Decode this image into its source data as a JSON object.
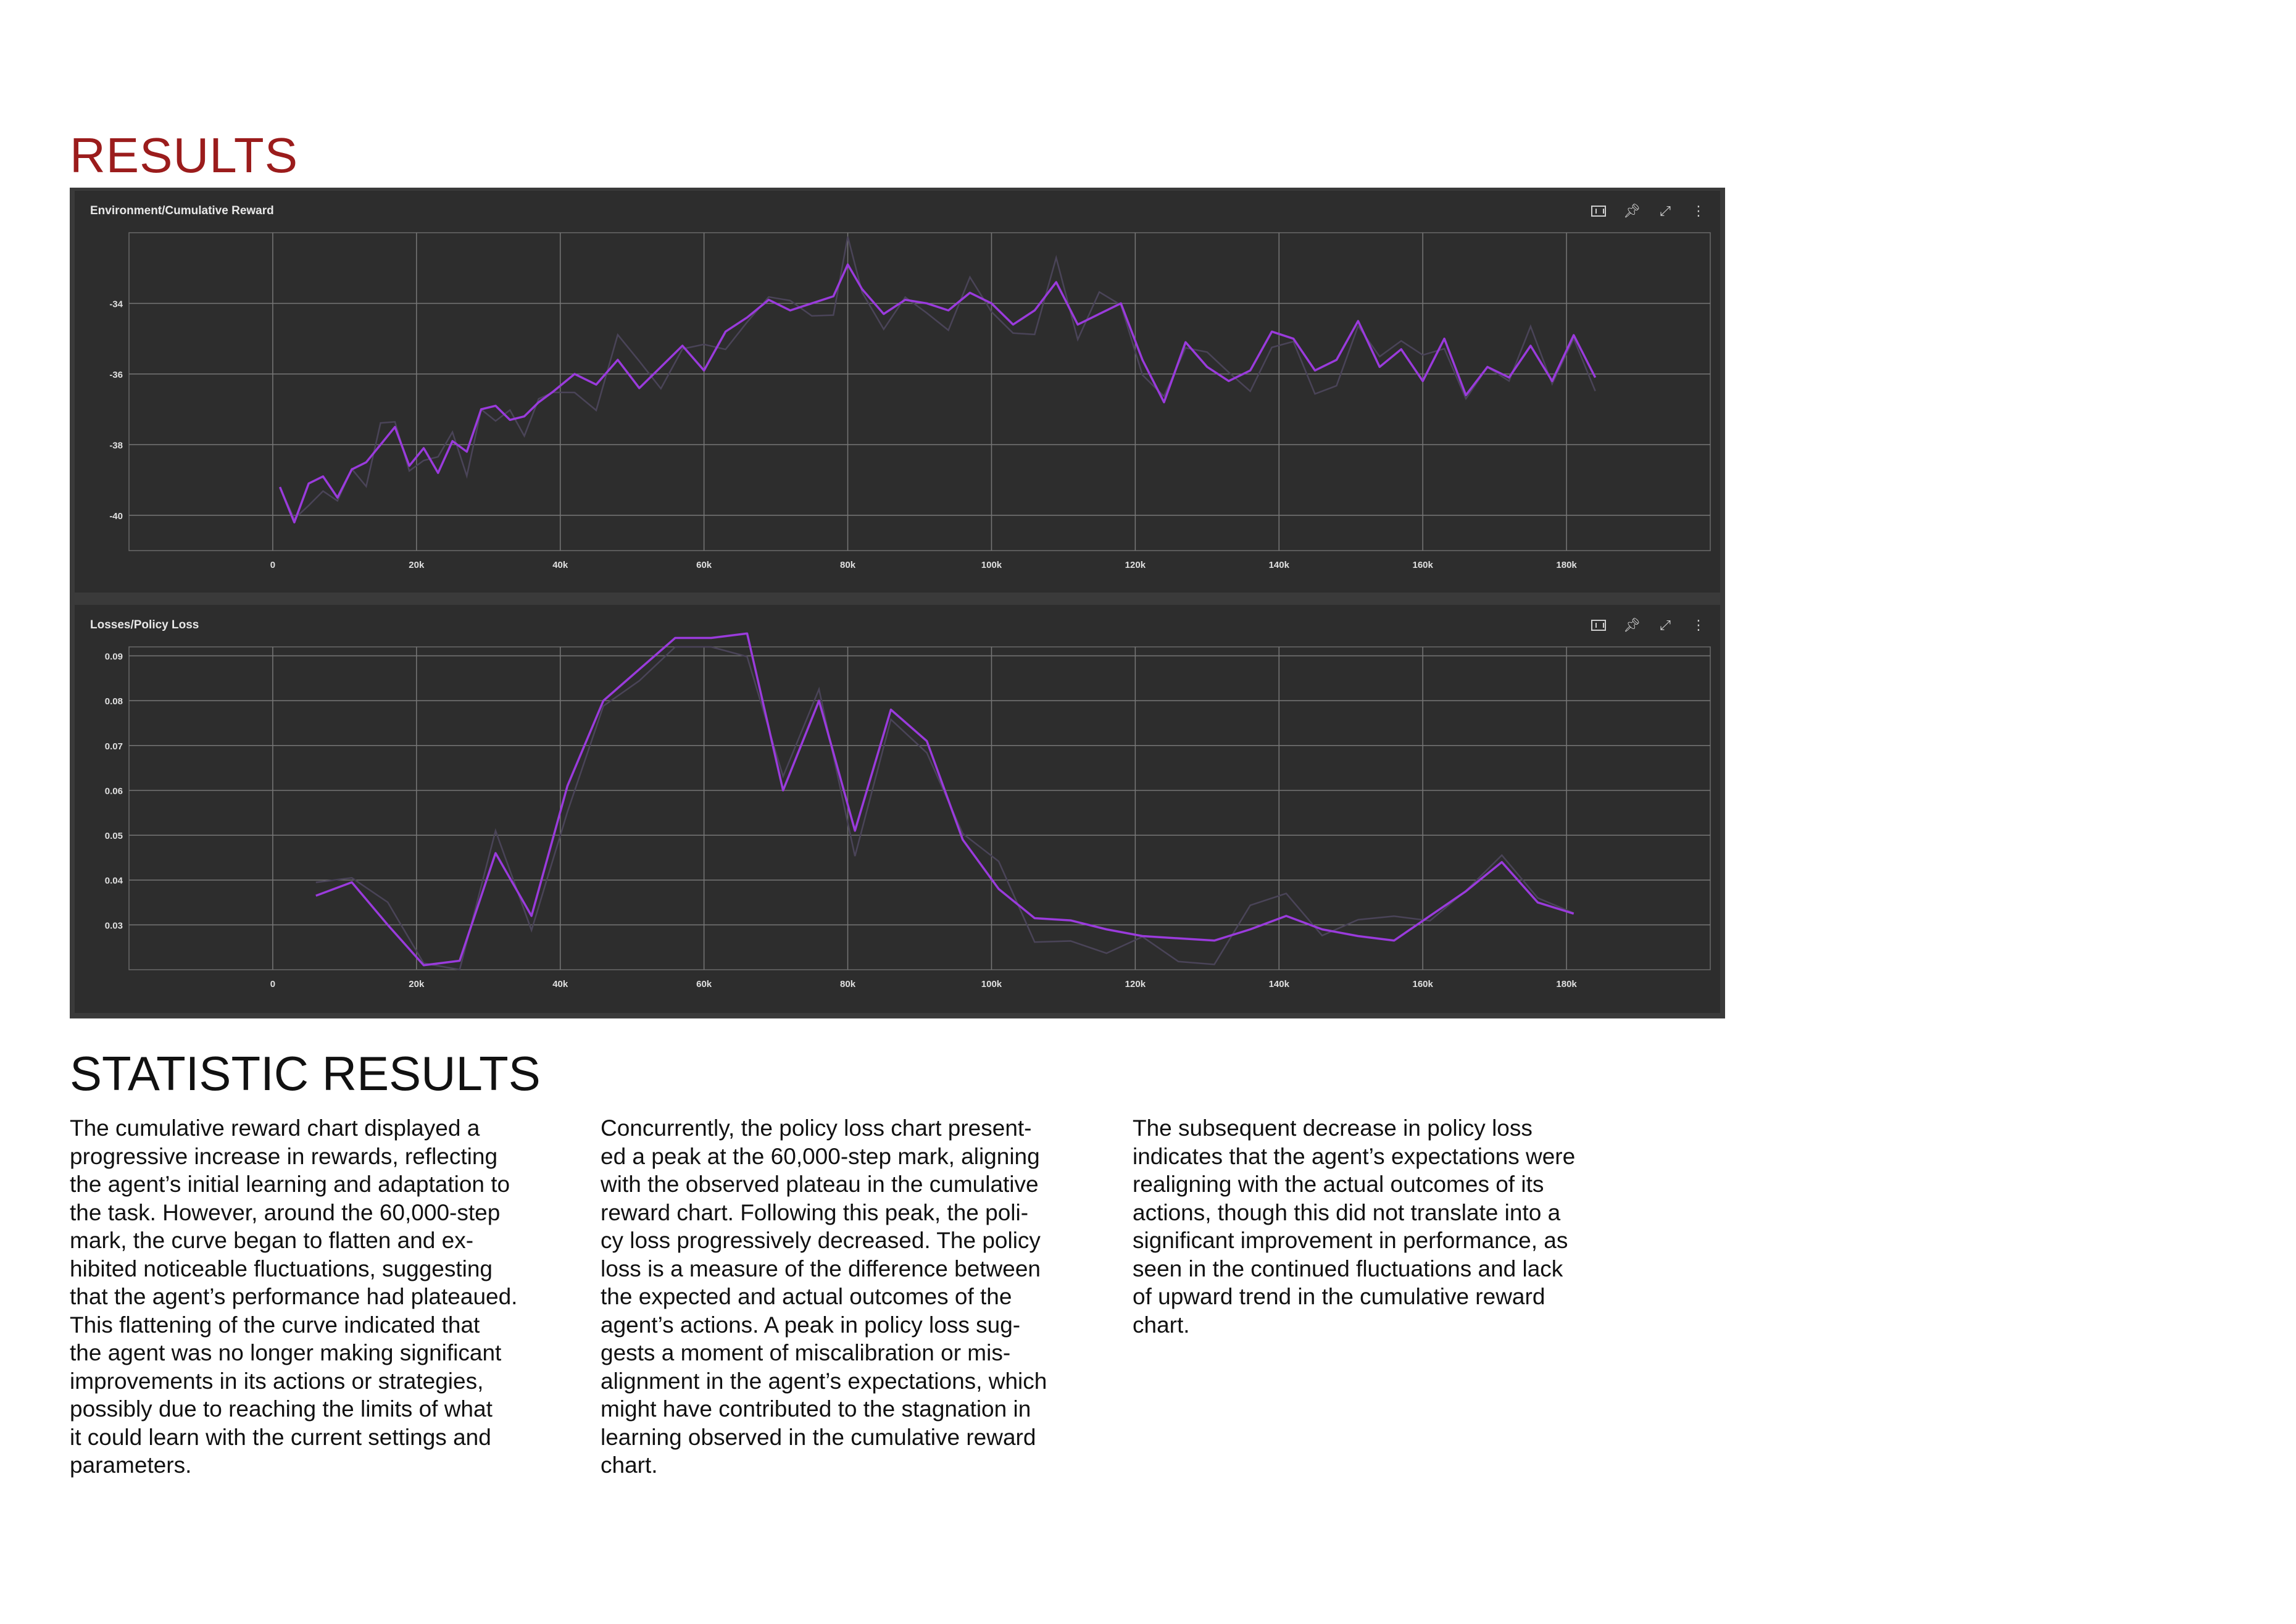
{
  "headings": {
    "results": "RESULTS",
    "statistic": "STATISTIC RESULTS"
  },
  "toolbar_icons": [
    "fit-domain-icon",
    "pin-icon",
    "expand-icon",
    "more-vertical-icon"
  ],
  "colors": {
    "smoothed_line": "#9a3bdc",
    "raw_line": "#4a4458",
    "panel_bg": "#2d2d2d",
    "heading_red": "#9b1c1c"
  },
  "chart_data": [
    {
      "type": "line",
      "title": "Environment/Cumulative Reward",
      "xlabel": "",
      "ylabel": "",
      "x_ticks": [
        0,
        20000,
        40000,
        60000,
        80000,
        100000,
        120000,
        140000,
        160000,
        180000
      ],
      "x_tick_labels": [
        "0",
        "20k",
        "40k",
        "60k",
        "80k",
        "100k",
        "120k",
        "140k",
        "160k",
        "180k"
      ],
      "y_ticks": [
        -40,
        -38,
        -36,
        -34
      ],
      "y_tick_labels": [
        "-40",
        "-38",
        "-36",
        "-34"
      ],
      "xlim": [
        -20000,
        200000
      ],
      "ylim": [
        -41,
        -32
      ],
      "grid": true,
      "series": [
        {
          "x": [
            1000,
            3000,
            5000,
            7000,
            9000,
            11000,
            13000,
            15000,
            17000,
            19000,
            21000,
            23000,
            25000,
            27000,
            29000,
            31000,
            33000,
            35000,
            37000,
            39000,
            42000,
            45000,
            48000,
            51000,
            54000,
            57000,
            60000,
            63000,
            66000,
            69000,
            72000,
            75000,
            78000,
            80000,
            82000,
            85000,
            88000,
            91000,
            94000,
            97000,
            100000,
            103000,
            106000,
            109000,
            112000,
            115000,
            118000,
            121000,
            124000,
            127000,
            130000,
            133000,
            136000,
            139000,
            142000,
            145000,
            148000,
            151000,
            154000,
            157000,
            160000,
            163000,
            166000,
            169000,
            172000,
            175000,
            178000,
            181000,
            184000
          ],
          "y": [
            -39.2,
            -40.2,
            -39.1,
            -38.9,
            -39.5,
            -38.7,
            -38.5,
            -38.0,
            -37.5,
            -38.6,
            -38.1,
            -38.8,
            -37.9,
            -38.2,
            -37.0,
            -36.9,
            -37.3,
            -37.2,
            -36.8,
            -36.5,
            -36.0,
            -36.3,
            -35.6,
            -36.4,
            -35.8,
            -35.2,
            -35.9,
            -34.8,
            -34.4,
            -33.9,
            -34.2,
            -34.0,
            -33.8,
            -32.9,
            -33.6,
            -34.3,
            -33.9,
            -34.0,
            -34.2,
            -33.7,
            -34.0,
            -34.6,
            -34.2,
            -33.4,
            -34.6,
            -34.3,
            -34.0,
            -35.6,
            -36.8,
            -35.1,
            -35.8,
            -36.2,
            -35.9,
            -34.8,
            -35.0,
            -35.9,
            -35.6,
            -34.5,
            -35.8,
            -35.3,
            -36.2,
            -35.0,
            -36.6,
            -35.8,
            -36.1,
            -35.2,
            -36.2,
            -34.9,
            -36.1
          ]
        }
      ]
    },
    {
      "type": "line",
      "title": "Losses/Policy Loss",
      "xlabel": "",
      "ylabel": "",
      "x_ticks": [
        0,
        20000,
        40000,
        60000,
        80000,
        100000,
        120000,
        140000,
        160000,
        180000
      ],
      "x_tick_labels": [
        "0",
        "20k",
        "40k",
        "60k",
        "80k",
        "100k",
        "120k",
        "140k",
        "160k",
        "180k"
      ],
      "y_ticks": [
        0.03,
        0.04,
        0.05,
        0.06,
        0.07,
        0.08,
        0.09
      ],
      "y_tick_labels": [
        "0.03",
        "0.04",
        "0.05",
        "0.06",
        "0.07",
        "0.08",
        "0.09"
      ],
      "xlim": [
        -20000,
        200000
      ],
      "ylim": [
        0.02,
        0.092
      ],
      "grid": true,
      "series": [
        {
          "x": [
            6000,
            11000,
            16000,
            21000,
            26000,
            31000,
            36000,
            41000,
            46000,
            51000,
            56000,
            61000,
            66000,
            71000,
            76000,
            81000,
            86000,
            91000,
            96000,
            101000,
            106000,
            111000,
            116000,
            121000,
            126000,
            131000,
            136000,
            141000,
            146000,
            151000,
            156000,
            161000,
            166000,
            171000,
            176000,
            181000
          ],
          "y": [
            0.0365,
            0.0395,
            0.03,
            0.021,
            0.022,
            0.046,
            0.032,
            0.061,
            0.08,
            0.087,
            0.094,
            0.094,
            0.095,
            0.06,
            0.08,
            0.051,
            0.078,
            0.071,
            0.049,
            0.038,
            0.0315,
            0.031,
            0.029,
            0.0275,
            0.027,
            0.0265,
            0.029,
            0.032,
            0.029,
            0.0275,
            0.0265,
            0.032,
            0.0375,
            0.044,
            0.035,
            0.0325
          ]
        }
      ]
    }
  ],
  "paragraphs": [
    "The cumulative reward chart displayed a\nprogressive increase in rewards, reflecting\nthe agent’s initial learning and adaptation to\nthe task. However, around the 60,000-step\nmark, the curve began to flatten and ex-\nhibited noticeable fluctuations, suggesting\nthat the agent’s performance had plateaued.\nThis flattening of the curve indicated that\nthe agent was no longer making significant\nimprovements in its actions or strategies,\npossibly due to reaching the limits of what\nit could learn with the current settings and\nparameters.",
    "Concurrently, the policy loss chart present-\ned a peak at the 60,000-step mark, aligning\nwith the observed plateau in the cumulative\nreward chart. Following this peak, the poli-\ncy loss progressively decreased. The policy\nloss is a measure of the difference between\nthe expected and actual outcomes of the\nagent’s actions. A peak in policy loss sug-\ngests a moment of miscalibration or mis-\nalignment in the agent’s expectations, which\nmight have contributed to the stagnation in\nlearning observed in the cumulative reward\nchart.",
    "The subsequent decrease in policy loss\nindicates that the agent’s expectations were\nrealigning with the actual outcomes of its\nactions, though this did not translate into a\nsignificant improvement in performance, as\nseen in the continued fluctuations and lack\nof upward trend in the cumulative reward\nchart."
  ]
}
